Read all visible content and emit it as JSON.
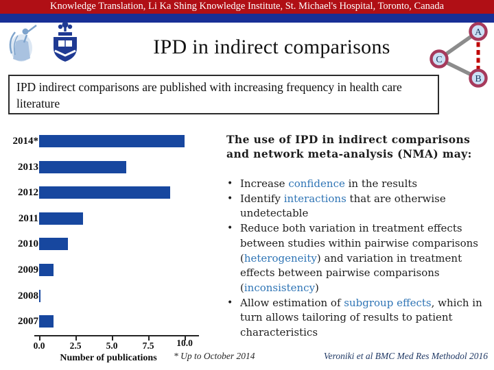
{
  "banner": {
    "text": "Knowledge Translation, Li Ka Shing Knowledge Institute, St. Michael's Hospital, Toronto, Canada"
  },
  "title": "IPD in indirect comparisons",
  "subtitle": "IPD indirect comparisons are published with increasing frequency in health care literature",
  "network": {
    "nodes": [
      "A",
      "C",
      "B"
    ]
  },
  "chart_data": {
    "type": "bar",
    "orientation": "horizontal",
    "title": "",
    "categories": [
      "2014*",
      "2013",
      "2012",
      "2011",
      "2010",
      "2009",
      "2008",
      "2007"
    ],
    "values": [
      10,
      6,
      9,
      3,
      2,
      1,
      0,
      1
    ],
    "xlabel": "Number of publications",
    "ylabel": "",
    "xlim": [
      0,
      10
    ],
    "xticks": [
      0,
      2.5,
      5,
      7.5,
      10
    ],
    "xtick_labels": [
      "0.0",
      "2.5",
      "5.0",
      "7.5",
      "10.0"
    ],
    "grid": false,
    "legend": false,
    "bar_color": "#17479F"
  },
  "right_panel": {
    "heading": "The use of IPD in indirect comparisons and network meta-analysis (NMA) may:",
    "bullets": [
      {
        "segments": [
          {
            "t": "Increase "
          },
          {
            "t": "confidence",
            "blue": true
          },
          {
            "t": " in the results"
          }
        ]
      },
      {
        "segments": [
          {
            "t": "Identify "
          },
          {
            "t": "interactions",
            "blue": true
          },
          {
            "t": " that are otherwise undetectable"
          }
        ]
      },
      {
        "segments": [
          {
            "t": "Reduce both variation in treatment effects between studies within pairwise comparisons ("
          },
          {
            "t": "heterogeneity",
            "blue": true
          },
          {
            "t": ") and variation in treatment effects between pairwise comparisons ("
          },
          {
            "t": "inconsistency",
            "blue": true
          },
          {
            "t": ")"
          }
        ]
      },
      {
        "segments": [
          {
            "t": "Allow estimation of "
          },
          {
            "t": "subgroup effects",
            "blue": true
          },
          {
            "t": ", which in turn allows tailoring of results to patient characteristics"
          }
        ]
      }
    ]
  },
  "footnote": "* Up to October 2014",
  "citation": "Veroniki et al BMC Med Res Methodol 2016",
  "icons": {
    "st_michaels_logo": "angel-figure-logo",
    "uoft_crest_logo": "university-crest-logo"
  },
  "colors": {
    "banner_red": "#B00F15",
    "stripe_blue": "#172F96",
    "bar_blue": "#17479F",
    "keyword_blue": "#2E74B5",
    "node_fill": "#CCE0F5",
    "node_ring": "#A63A5C",
    "edge_gray": "#8C8C8C",
    "dashed_red": "#C00000",
    "citation_blue": "#1F3864",
    "text_dark": "#1C1C1C"
  }
}
